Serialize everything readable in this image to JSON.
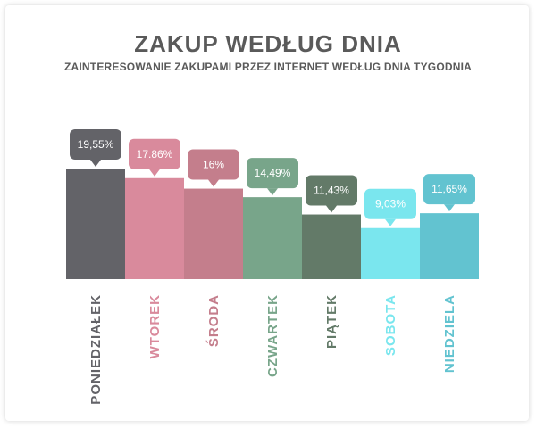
{
  "chart_data": {
    "type": "bar",
    "title": "ZAKUP WEDŁUG DNIA",
    "subtitle": "ZAINTERESOWANIE ZAKUPAMI PRZEZ INTERNET WEDŁUG DNIA TYGODNIA",
    "categories": [
      "PONIEDZIAŁEK",
      "WTOREK",
      "ŚRODA",
      "CZWARTEK",
      "PIĄTEK",
      "SOBOTA",
      "NIEDZIELA"
    ],
    "values": [
      19.55,
      17.86,
      16,
      14.49,
      11.43,
      9.03,
      11.65
    ],
    "value_labels": [
      "19,55%",
      "17.86%",
      "16%",
      "14,49%",
      "11,43%",
      "9,03%",
      "11,65%"
    ],
    "colors": [
      "#636368",
      "#d98a9c",
      "#c47e8c",
      "#78a58a",
      "#637a68",
      "#7ae6ee",
      "#62c3d0"
    ],
    "ylim": [
      0,
      20
    ],
    "grid": false,
    "legend": "none"
  }
}
